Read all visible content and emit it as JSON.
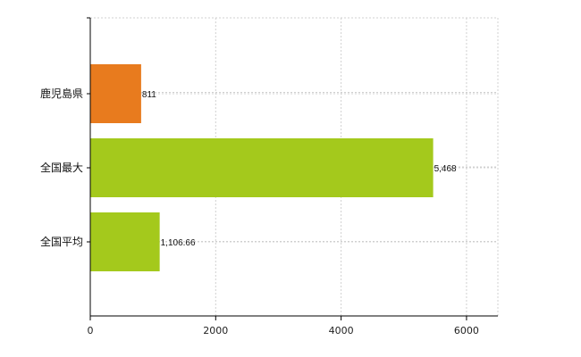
{
  "chart_data": {
    "type": "bar",
    "orientation": "horizontal",
    "categories": [
      "鹿児島県",
      "全国最大",
      "全国平均"
    ],
    "values": [
      811,
      5468,
      1106.66
    ],
    "value_labels": [
      "811",
      "5,468",
      "1,106.66"
    ],
    "bar_colors": [
      "#e87b1e",
      "#a4c91c",
      "#a4c91c"
    ],
    "xlim": [
      0,
      6500
    ],
    "xticks": [
      0,
      2000,
      4000,
      6000
    ],
    "xtick_labels": [
      "0",
      "2000",
      "4000",
      "6000"
    ],
    "grid": true,
    "legend": "none"
  }
}
